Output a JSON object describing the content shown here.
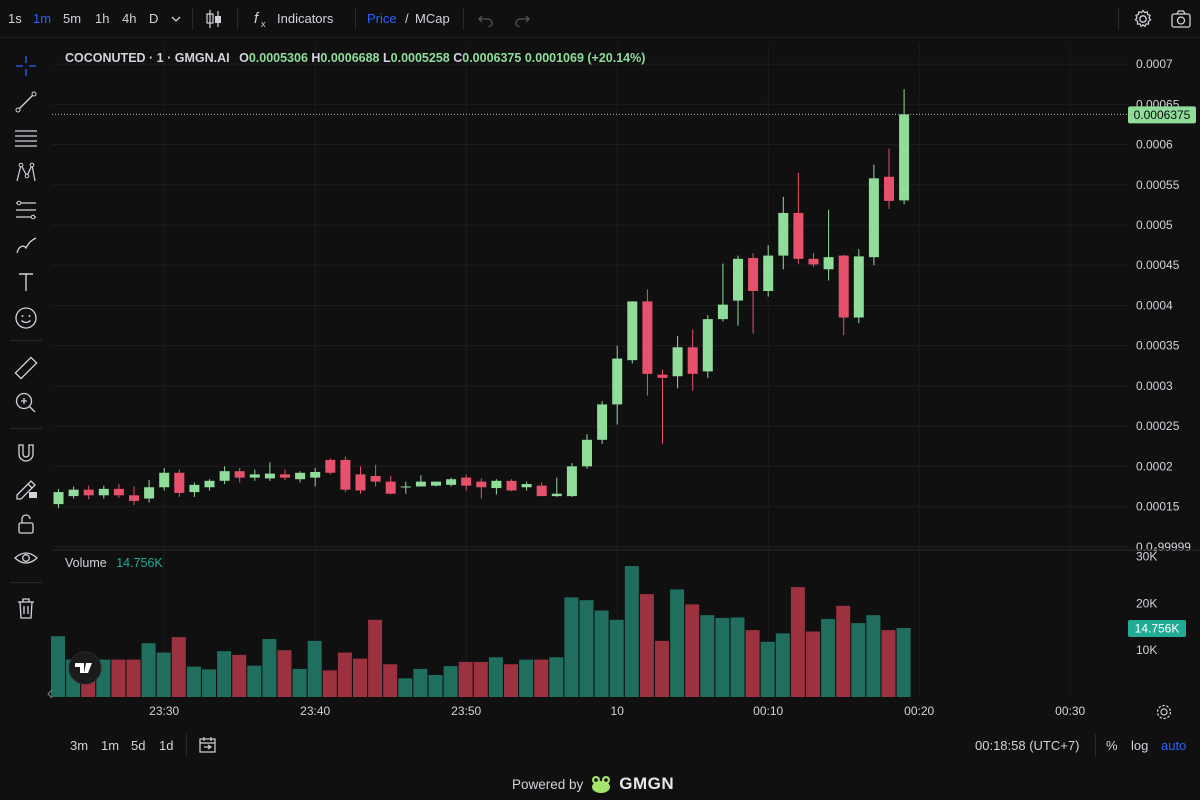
{
  "toolbar": {
    "timeframes": [
      "1s",
      "1m",
      "5m",
      "1h",
      "4h",
      "D"
    ],
    "active_timeframe": "1m",
    "indicators_label": "Indicators",
    "price_label": "Price",
    "slash": "/",
    "mcap_label": "MCap"
  },
  "legend": {
    "symbol": "COCONUTED · 1 · GMGN.AI",
    "o_label": "O",
    "o": "0.0005306",
    "h_label": "H",
    "h": "0.0006688",
    "l_label": "L",
    "l": "0.0005258",
    "c_label": "C",
    "c": "0.0006375",
    "change": "0.0001069 (+20.14%)"
  },
  "volume_legend": {
    "label": "Volume",
    "value": "14.756K"
  },
  "price_tag": "0.0006375",
  "volume_tag": "14.756K",
  "bottom": {
    "ranges": [
      "3m",
      "1m",
      "5d",
      "1d"
    ],
    "clock": "00:18:58 (UTC+7)",
    "percent": "%",
    "log": "log",
    "auto": "auto",
    "powered_by": "Powered by",
    "brand": "GMGN"
  },
  "colors": {
    "up": "#8fdc9b",
    "down": "#e8516b",
    "vol_up": "#1f6e5e",
    "vol_down": "#9c3240",
    "accent": "#2962ff",
    "tag": "#8fdc9b"
  },
  "chart_data": {
    "type": "candlestick",
    "title": "COCONUTED · 1 · GMGN.AI",
    "interval": "1m",
    "start_time": "23:23",
    "x_ticks": [
      "23:30",
      "23:40",
      "23:50",
      "10",
      "00:10",
      "00:20",
      "00:30"
    ],
    "x_tick_minutes": [
      7,
      17,
      27,
      37,
      47,
      57,
      67
    ],
    "y_ticks": [
      "0.0007",
      "0.00065",
      "0.0006",
      "0.00055",
      "0.0005",
      "0.00045",
      "0.0004",
      "0.00035",
      "0.0003",
      "0.00025",
      "0.0002",
      "0.00015",
      "0.0₄99999"
    ],
    "y_tick_values": [
      0.0007,
      0.00065,
      0.0006,
      0.00055,
      0.0005,
      0.00045,
      0.0004,
      0.00035,
      0.0003,
      0.00025,
      0.0002,
      0.00015,
      0.0001
    ],
    "ylim": [
      9.85e-05,
      0.000725
    ],
    "last_price": 0.0006375,
    "volume_ticks": [
      "30K",
      "20K",
      "10K"
    ],
    "volume_tick_values": [
      30000,
      20000,
      10000
    ],
    "volume_ylim": [
      0,
      31000
    ],
    "candles": [
      {
        "o": 0.000153,
        "h": 0.000172,
        "l": 0.000148,
        "c": 0.000168,
        "v": 13000
      },
      {
        "o": 0.000163,
        "h": 0.000175,
        "l": 0.00016,
        "c": 0.000171,
        "v": 8000
      },
      {
        "o": 0.000171,
        "h": 0.000176,
        "l": 0.000159,
        "c": 0.000164,
        "v": 7500
      },
      {
        "o": 0.000164,
        "h": 0.000176,
        "l": 0.00016,
        "c": 0.000172,
        "v": 8000
      },
      {
        "o": 0.000172,
        "h": 0.000178,
        "l": 0.000161,
        "c": 0.000164,
        "v": 8000
      },
      {
        "o": 0.000164,
        "h": 0.000175,
        "l": 0.000152,
        "c": 0.000157,
        "v": 8000
      },
      {
        "o": 0.00016,
        "h": 0.000183,
        "l": 0.000155,
        "c": 0.000174,
        "v": 11500
      },
      {
        "o": 0.000174,
        "h": 0.000198,
        "l": 0.00017,
        "c": 0.000192,
        "v": 9500
      },
      {
        "o": 0.000192,
        "h": 0.000196,
        "l": 0.000162,
        "c": 0.000167,
        "v": 12800
      },
      {
        "o": 0.000168,
        "h": 0.00018,
        "l": 0.000162,
        "c": 0.000177,
        "v": 6500
      },
      {
        "o": 0.000174,
        "h": 0.000184,
        "l": 0.00017,
        "c": 0.000182,
        "v": 5900
      },
      {
        "o": 0.000182,
        "h": 0.0002,
        "l": 0.000178,
        "c": 0.000194,
        "v": 9800
      },
      {
        "o": 0.000194,
        "h": 0.000198,
        "l": 0.00018,
        "c": 0.000186,
        "v": 9000
      },
      {
        "o": 0.000186,
        "h": 0.000196,
        "l": 0.000182,
        "c": 0.00019,
        "v": 6700
      },
      {
        "o": 0.000185,
        "h": 0.000205,
        "l": 0.000182,
        "c": 0.000191,
        "v": 12400
      },
      {
        "o": 0.00019,
        "h": 0.000196,
        "l": 0.000183,
        "c": 0.000186,
        "v": 10000
      },
      {
        "o": 0.000184,
        "h": 0.000194,
        "l": 0.00018,
        "c": 0.000192,
        "v": 6000
      },
      {
        "o": 0.000186,
        "h": 0.000198,
        "l": 0.000175,
        "c": 0.000193,
        "v": 12000
      },
      {
        "o": 0.000208,
        "h": 0.00021,
        "l": 0.00019,
        "c": 0.000192,
        "v": 5700
      },
      {
        "o": 0.000208,
        "h": 0.000212,
        "l": 0.000168,
        "c": 0.000171,
        "v": 9500
      },
      {
        "o": 0.00019,
        "h": 0.0002,
        "l": 0.000166,
        "c": 0.00017,
        "v": 8200
      },
      {
        "o": 0.000188,
        "h": 0.000202,
        "l": 0.000175,
        "c": 0.000181,
        "v": 16500
      },
      {
        "o": 0.000181,
        "h": 0.000188,
        "l": 0.000165,
        "c": 0.000166,
        "v": 7000
      },
      {
        "o": 0.000174,
        "h": 0.000181,
        "l": 0.000166,
        "c": 0.000175,
        "v": 4000
      },
      {
        "o": 0.000175,
        "h": 0.000189,
        "l": 0.000175,
        "c": 0.000181,
        "v": 6000
      },
      {
        "o": 0.000176,
        "h": 0.000181,
        "l": 0.000175,
        "c": 0.000181,
        "v": 4700
      },
      {
        "o": 0.000177,
        "h": 0.000186,
        "l": 0.000175,
        "c": 0.000184,
        "v": 6600
      },
      {
        "o": 0.000186,
        "h": 0.00019,
        "l": 0.00017,
        "c": 0.000176,
        "v": 7500
      },
      {
        "o": 0.000181,
        "h": 0.000185,
        "l": 0.00016,
        "c": 0.000174,
        "v": 7500
      },
      {
        "o": 0.000173,
        "h": 0.000184,
        "l": 0.000165,
        "c": 0.000182,
        "v": 8500
      },
      {
        "o": 0.000182,
        "h": 0.000184,
        "l": 0.000169,
        "c": 0.00017,
        "v": 7000
      },
      {
        "o": 0.000174,
        "h": 0.000181,
        "l": 0.00017,
        "c": 0.000178,
        "v": 8000
      },
      {
        "o": 0.000176,
        "h": 0.00018,
        "l": 0.000163,
        "c": 0.000163,
        "v": 8000
      },
      {
        "o": 0.000163,
        "h": 0.000186,
        "l": 0.000162,
        "c": 0.000166,
        "v": 8500
      },
      {
        "o": 0.000163,
        "h": 0.000204,
        "l": 0.000162,
        "c": 0.0002,
        "v": 21300
      },
      {
        "o": 0.0002,
        "h": 0.00024,
        "l": 0.000197,
        "c": 0.000233,
        "v": 20700
      },
      {
        "o": 0.000233,
        "h": 0.000281,
        "l": 0.000228,
        "c": 0.000277,
        "v": 18500
      },
      {
        "o": 0.000277,
        "h": 0.00035,
        "l": 0.000252,
        "c": 0.000334,
        "v": 16500
      },
      {
        "o": 0.000332,
        "h": 0.000405,
        "l": 0.000328,
        "c": 0.000405,
        "v": 28000
      },
      {
        "o": 0.000405,
        "h": 0.00042,
        "l": 0.000288,
        "c": 0.000315,
        "v": 22000
      },
      {
        "o": 0.000314,
        "h": 0.00032,
        "l": 0.000228,
        "c": 0.00031,
        "v": 12000
      },
      {
        "o": 0.000312,
        "h": 0.000362,
        "l": 0.000297,
        "c": 0.000348,
        "v": 23000
      },
      {
        "o": 0.000348,
        "h": 0.00037,
        "l": 0.000294,
        "c": 0.000315,
        "v": 19800
      },
      {
        "o": 0.000318,
        "h": 0.000388,
        "l": 0.00031,
        "c": 0.000383,
        "v": 17500
      },
      {
        "o": 0.000383,
        "h": 0.000452,
        "l": 0.00038,
        "c": 0.000401,
        "v": 16900
      },
      {
        "o": 0.000406,
        "h": 0.000462,
        "l": 0.000375,
        "c": 0.000458,
        "v": 17000
      },
      {
        "o": 0.000459,
        "h": 0.000465,
        "l": 0.000365,
        "c": 0.000418,
        "v": 14300
      },
      {
        "o": 0.000418,
        "h": 0.000475,
        "l": 0.000411,
        "c": 0.000462,
        "v": 11800
      },
      {
        "o": 0.000462,
        "h": 0.000535,
        "l": 0.000445,
        "c": 0.000515,
        "v": 13600
      },
      {
        "o": 0.000515,
        "h": 0.000565,
        "l": 0.000452,
        "c": 0.000458,
        "v": 23500
      },
      {
        "o": 0.000458,
        "h": 0.000465,
        "l": 0.000448,
        "c": 0.000451,
        "v": 14000
      },
      {
        "o": 0.000445,
        "h": 0.000519,
        "l": 0.000431,
        "c": 0.00046,
        "v": 16700
      },
      {
        "o": 0.000462,
        "h": 0.000463,
        "l": 0.000363,
        "c": 0.000385,
        "v": 19500
      },
      {
        "o": 0.000385,
        "h": 0.00047,
        "l": 0.000378,
        "c": 0.000461,
        "v": 15800
      },
      {
        "o": 0.00046,
        "h": 0.000575,
        "l": 0.00045,
        "c": 0.000558,
        "v": 17500
      },
      {
        "o": 0.00056,
        "h": 0.000595,
        "l": 0.00052,
        "c": 0.00053,
        "v": 14300
      },
      {
        "o": 0.0005306,
        "h": 0.0006688,
        "l": 0.0005258,
        "c": 0.0006375,
        "v": 14756
      }
    ]
  }
}
